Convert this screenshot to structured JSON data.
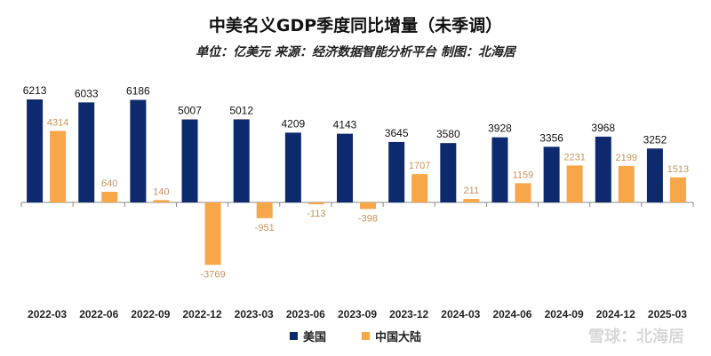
{
  "chart_data": {
    "type": "bar",
    "title": "中美名义GDP季度同比增量（未季调）",
    "subtitle": "单位：亿美元 来源：经济数据智能分析平台 制图：北海居",
    "categories": [
      "2022-03",
      "2022-06",
      "2022-09",
      "2022-12",
      "2023-03",
      "2023-06",
      "2023-09",
      "2023-12",
      "2024-03",
      "2024-06",
      "2024-09",
      "2024-12",
      "2025-03"
    ],
    "series": [
      {
        "name": "美国",
        "color": "#0d2a6e",
        "values": [
          6213,
          6033,
          6186,
          5007,
          5012,
          4209,
          4143,
          3645,
          3580,
          3928,
          3356,
          3968,
          3252
        ]
      },
      {
        "name": "中国大陆",
        "color": "#f7a64a",
        "values": [
          4314,
          640,
          140,
          -3769,
          -951,
          -113,
          -398,
          1707,
          211,
          1159,
          2231,
          2199,
          1513
        ]
      }
    ],
    "data_labels": true,
    "grid": false,
    "legend_position": "bottom",
    "ylim": [
      -5400,
      6213
    ]
  },
  "watermark": "雪球：北海居"
}
